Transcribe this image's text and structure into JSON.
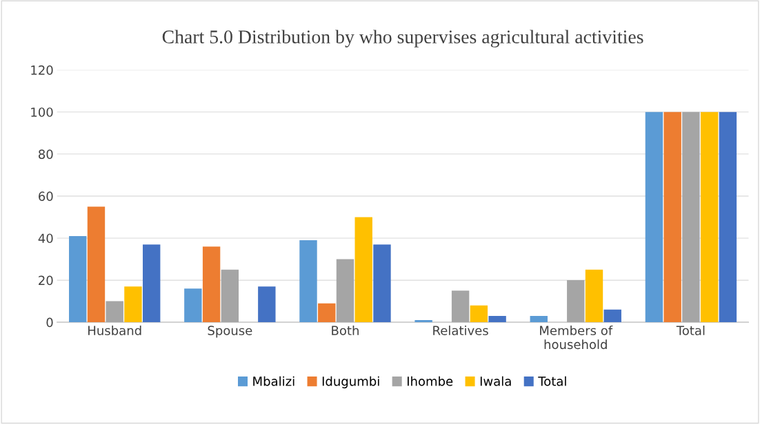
{
  "chart_data": {
    "type": "bar",
    "title": "Chart 5.0 Distribution by who supervises agricultural activities",
    "categories": [
      "Husband",
      "Spouse",
      "Both",
      "Relatives",
      "Members of\nhousehold",
      "Total"
    ],
    "series": [
      {
        "name": "Mbalizi",
        "color": "#5b9bd5",
        "values": [
          41,
          16,
          39,
          1,
          3,
          100
        ]
      },
      {
        "name": "Idugumbi",
        "color": "#ed7d31",
        "values": [
          55,
          36,
          9,
          0,
          0,
          100
        ]
      },
      {
        "name": "Ihombe",
        "color": "#a5a5a5",
        "values": [
          10,
          25,
          30,
          15,
          20,
          100
        ]
      },
      {
        "name": "Iwala",
        "color": "#ffc000",
        "values": [
          17,
          0,
          50,
          8,
          25,
          100
        ]
      },
      {
        "name": "Total",
        "color": "#4472c4",
        "values": [
          37,
          17,
          37,
          3,
          6,
          100
        ]
      }
    ],
    "ylim": [
      0,
      120
    ],
    "yticks": [
      0,
      20,
      40,
      60,
      80,
      100,
      120
    ],
    "grid": "y",
    "legend": "bottom"
  }
}
